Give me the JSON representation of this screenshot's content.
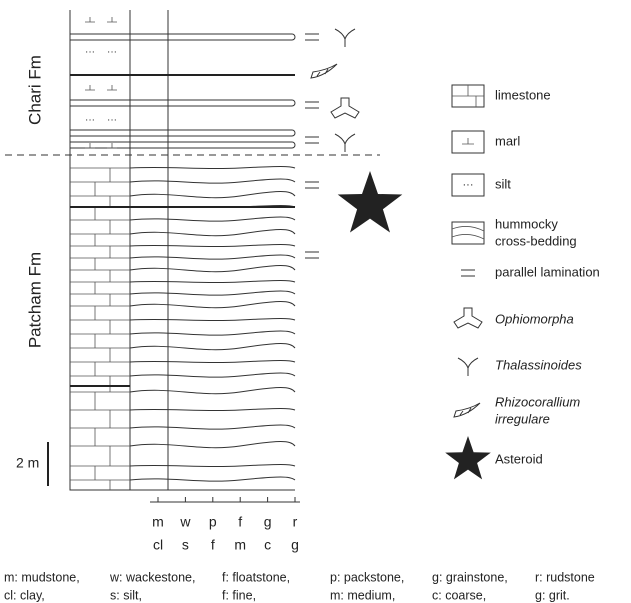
{
  "formations": [
    {
      "label": "Chari Fm"
    },
    {
      "label": "Patcham Fm"
    }
  ],
  "scale_bar": {
    "label": "2 m"
  },
  "grain_axis": {
    "carbonate": [
      "m",
      "w",
      "p",
      "f",
      "g",
      "r"
    ],
    "clastic": [
      "cl",
      "s",
      "f",
      "m",
      "c",
      "g"
    ]
  },
  "legend": [
    {
      "label": "limestone"
    },
    {
      "label": "marl"
    },
    {
      "label": "silt"
    },
    {
      "label": [
        "hummocky",
        "cross-bedding"
      ]
    },
    {
      "label": "parallel lamination"
    },
    {
      "label": "Ophiomorpha"
    },
    {
      "label": "Thalassinoides"
    },
    {
      "label": [
        "Rhizocorallium",
        "irregulare"
      ]
    },
    {
      "label": "Asteroid"
    }
  ],
  "footnote": {
    "rows": [
      [
        "m: mudstone,",
        "w: wackestone,",
        "f: floatstone,",
        "p: packstone,",
        "g: grainstone,",
        "r: rudstone"
      ],
      [
        "cl: clay,",
        "s: silt,",
        "f: fine,",
        "m: medium,",
        "c: coarse,",
        "g: grit."
      ]
    ]
  }
}
